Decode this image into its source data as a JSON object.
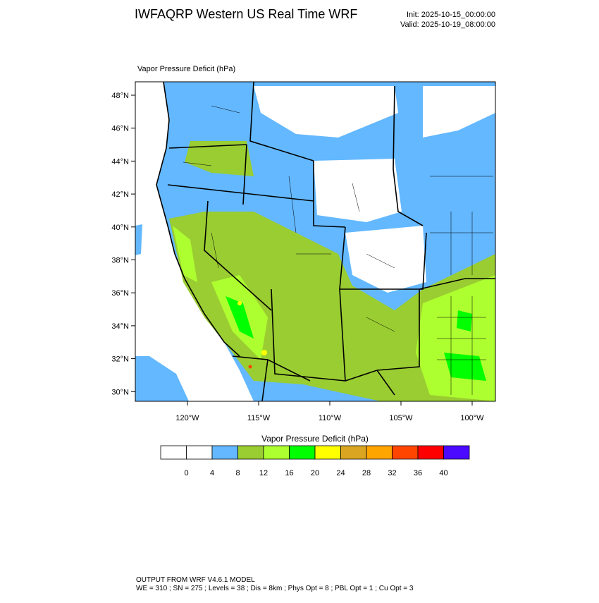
{
  "header": {
    "title": "IWFAQRP Western US Real Time WRF",
    "init": "Init: 2025-10-15_00:00:00",
    "valid": "Valid: 2025-10-19_08:00:00"
  },
  "map": {
    "label": "Vapor Pressure Deficit   (hPa)",
    "lat_ticks": [
      "48°N",
      "46°N",
      "44°N",
      "42°N",
      "40°N",
      "38°N",
      "36°N",
      "34°N",
      "32°N",
      "30°N"
    ],
    "lon_ticks": [
      "120°W",
      "115°W",
      "110°W",
      "105°W",
      "100°W"
    ]
  },
  "colorbar": {
    "title": "Vapor Pressure Deficit  (hPa)",
    "labels": [
      0,
      4,
      8,
      12,
      16,
      20,
      24,
      28,
      32,
      36,
      40
    ],
    "colors": [
      "#ffffff",
      "#ffffff",
      "#63b8ff",
      "#9acd32",
      "#adff2f",
      "#00ff00",
      "#ffff00",
      "#daa520",
      "#ffa500",
      "#ff4500",
      "#ff0000",
      "#4b0aff"
    ]
  },
  "footer": {
    "line1": "OUTPUT FROM WRF V4.6.1 MODEL",
    "line2": "WE = 310 ; SN = 275 ; Levels = 38 ; Dis = 8km ; Phys Opt = 8 ; PBL Opt = 1 ; Cu Opt = 3"
  }
}
